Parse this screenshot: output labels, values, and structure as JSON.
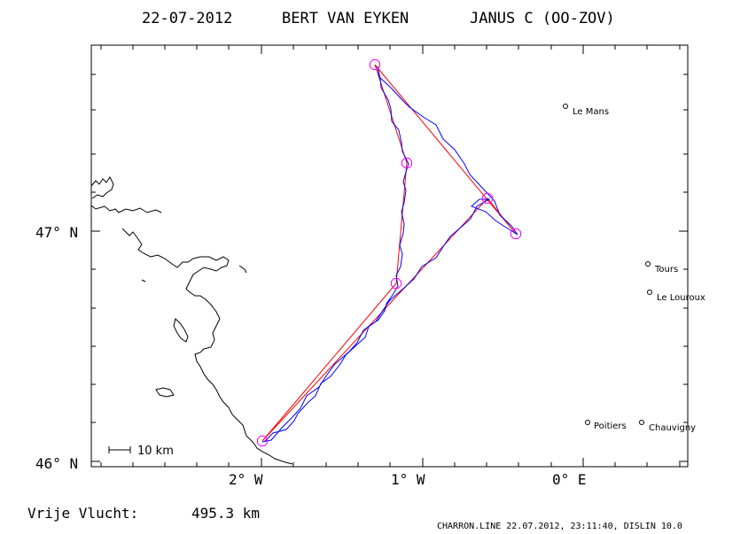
{
  "header": {
    "date": "22-07-2012",
    "pilot": "BERT VAN EYKEN",
    "glider": "JANUS C (OO-ZOV)"
  },
  "axes": {
    "latitude_labels": [
      "47° N",
      "46° N"
    ],
    "longitude_labels": [
      "2° W",
      "1° W",
      "0° E"
    ]
  },
  "towns": [
    {
      "name": "Le Mans"
    },
    {
      "name": "Tours"
    },
    {
      "name": "Le Louroux"
    },
    {
      "name": "Poitiers"
    },
    {
      "name": "Chauvigny"
    }
  ],
  "scale_bar": {
    "label": "10 km"
  },
  "footer": {
    "distance_label": "Vrije Vlucht:",
    "distance_value": "495.3 km",
    "credit": "CHARRON.LINE 22.07.2012, 23:11:40, DISLIN 10.0"
  },
  "colors": {
    "coastline": "#000000",
    "track": "#0000ff",
    "task": "#ff0000",
    "turnpoint": "#ff00ff"
  }
}
